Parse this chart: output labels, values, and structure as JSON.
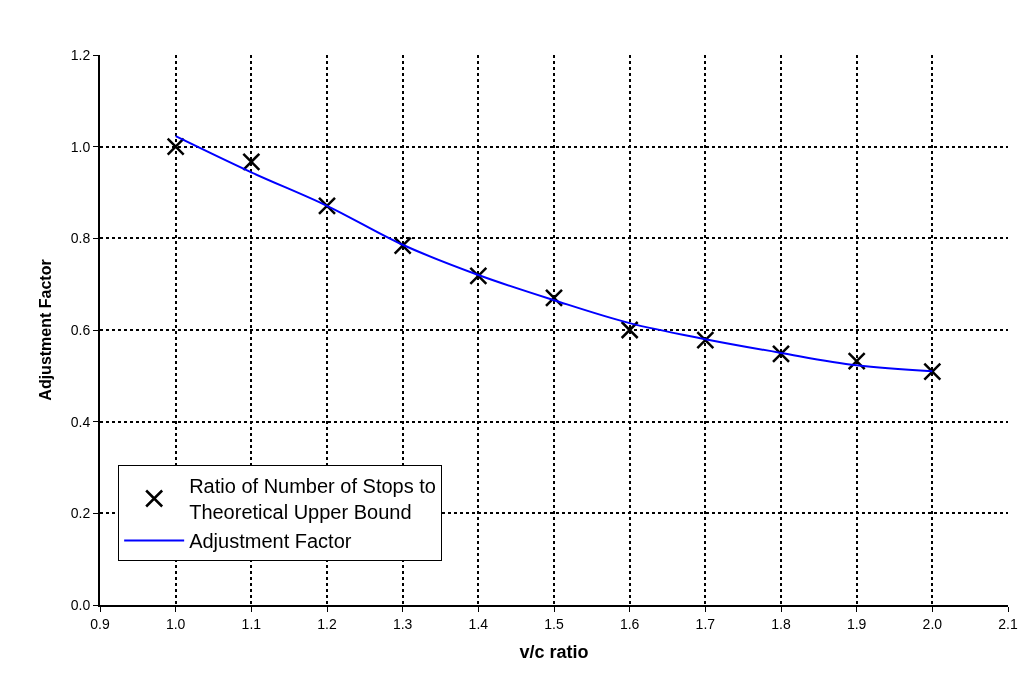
{
  "chart_data": {
    "type": "scatter",
    "xlabel": "v/c ratio",
    "ylabel": "Adjustment Factor",
    "x": [
      1.0,
      1.1,
      1.2,
      1.3,
      1.4,
      1.5,
      1.6,
      1.7,
      1.8,
      1.9,
      2.0
    ],
    "series": [
      {
        "name": "Ratio of Number of Stops to Theoretical Upper Bound",
        "marker": "cross",
        "color": "#000000",
        "values": [
          1.0,
          0.967,
          0.871,
          0.784,
          0.718,
          0.67,
          0.6,
          0.578,
          0.548,
          0.532,
          0.509
        ]
      },
      {
        "name": "Adjustment Factor",
        "type": "line",
        "marker": "none",
        "line_style": "solid",
        "color": "#0000ff",
        "values": [
          1.023,
          0.944,
          0.871,
          0.786,
          0.72,
          0.665,
          0.615,
          0.58,
          0.55,
          0.523,
          0.51
        ]
      }
    ],
    "xlim": [
      0.9,
      2.1
    ],
    "xticks": [
      {
        "value": 0.9,
        "label": "0.9"
      },
      {
        "value": 1.0,
        "label": "1.0"
      },
      {
        "value": 1.1,
        "label": "1.1"
      },
      {
        "value": 1.2,
        "label": "1.2"
      },
      {
        "value": 1.3,
        "label": "1.3"
      },
      {
        "value": 1.4,
        "label": "1.4"
      },
      {
        "value": 1.5,
        "label": "1.5"
      },
      {
        "value": 1.6,
        "label": "1.6"
      },
      {
        "value": 1.7,
        "label": "1.7"
      },
      {
        "value": 1.8,
        "label": "1.8"
      },
      {
        "value": 1.9,
        "label": "1.9"
      },
      {
        "value": 2.0,
        "label": "2.0"
      },
      {
        "value": 2.1,
        "label": "2.1"
      }
    ],
    "ylim": [
      0,
      1.2
    ],
    "yticks": [
      {
        "value": 0,
        "label": "0.0"
      },
      {
        "value": 0.2,
        "label": "0.2"
      },
      {
        "value": 0.4,
        "label": "0.4"
      },
      {
        "value": 0.6,
        "label": "0.6"
      },
      {
        "value": 0.8,
        "label": "0.8"
      },
      {
        "value": 1.0,
        "label": "1.0"
      },
      {
        "value": 1.2,
        "label": "1.2"
      }
    ],
    "grid": true,
    "legend": "bottom left"
  }
}
